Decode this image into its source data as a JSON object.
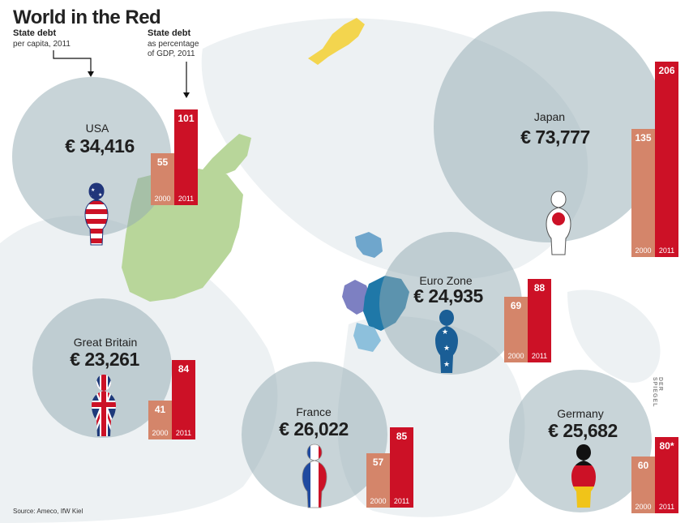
{
  "title": "World in the Red",
  "legend": {
    "per_capita_head": "State debt",
    "per_capita_sub": "per capita, 2011",
    "gdp_head": "State debt",
    "gdp_sub_1": "as percentage",
    "gdp_sub_2": "of GDP, 2011"
  },
  "source": "Source: Ameco, IfW Kiel",
  "watermark": "DER SPIEGEL",
  "colors": {
    "bar_2000": "#d4856a",
    "bar_2011": "#cc1126",
    "circle": "#9aaeb6"
  },
  "chart_data": {
    "type": "bar",
    "categories": [
      "USA",
      "Japan",
      "Euro Zone",
      "Great Britain",
      "France",
      "Germany"
    ],
    "per_capita_debt": [
      "€ 34,416",
      "€ 73,777",
      "€ 24,935",
      "€ 23,261",
      "€ 26,022",
      "€ 25,682"
    ],
    "years": [
      "2000",
      "2011"
    ],
    "series": [
      {
        "name": "2000",
        "values": [
          55,
          135,
          69,
          41,
          57,
          60
        ],
        "labels": [
          "55",
          "135",
          "69",
          "41",
          "57",
          "60"
        ]
      },
      {
        "name": "2011",
        "values": [
          101,
          206,
          88,
          84,
          85,
          80
        ],
        "labels": [
          "101",
          "206",
          "88",
          "84",
          "85",
          "80*"
        ]
      }
    ]
  }
}
